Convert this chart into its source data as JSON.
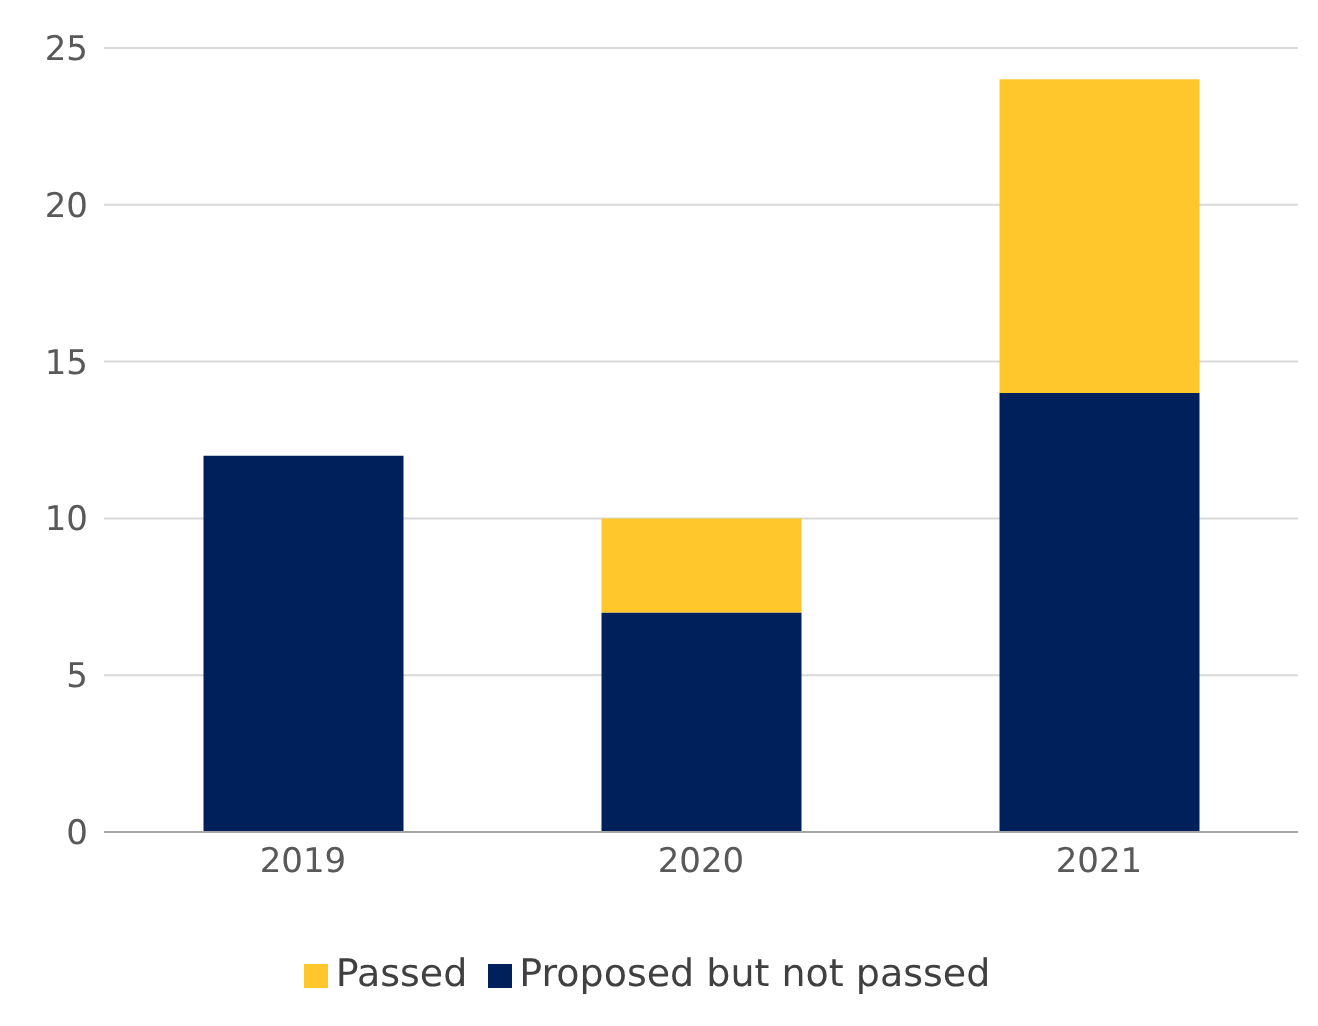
{
  "chart_data": {
    "type": "bar",
    "stacked": true,
    "categories": [
      "2019",
      "2020",
      "2021"
    ],
    "series": [
      {
        "name": "Proposed but not passed",
        "color": "#00205b",
        "values": [
          12,
          7,
          14
        ]
      },
      {
        "name": "Passed",
        "color": "#ffc72c",
        "values": [
          0,
          3,
          10
        ]
      }
    ],
    "ylim": [
      0,
      25
    ],
    "yticks": [
      0,
      5,
      10,
      15,
      20,
      25
    ],
    "grid": "y",
    "legend": "bottom"
  }
}
